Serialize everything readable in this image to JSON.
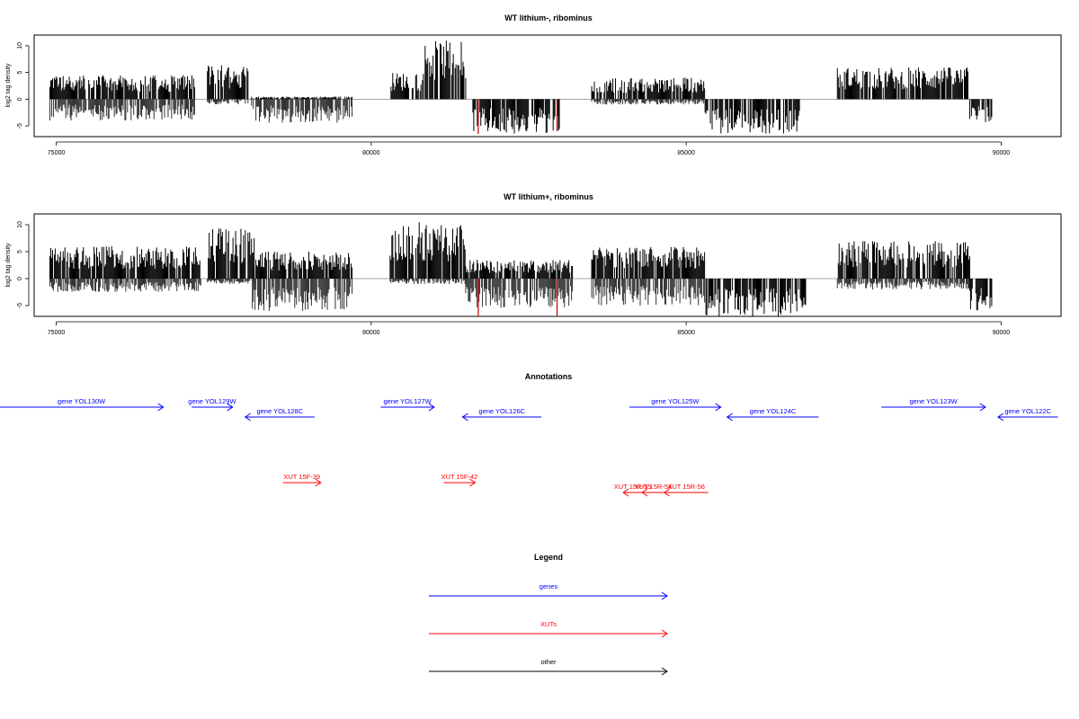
{
  "colors": {
    "gene": "#0000ff",
    "xut": "#ff0000",
    "other": "#000000",
    "signal": "#000000",
    "hi": "#c00000"
  },
  "chart_data": [
    {
      "type": "bar",
      "title": "WT lithium-, ribominus",
      "ylabel": "log2 tag density",
      "xlim": [
        74650,
        90950
      ],
      "ylim": [
        -7,
        12
      ],
      "xticks": [
        "75000",
        "80000",
        "85000",
        "90000"
      ],
      "yticks": [
        "-5",
        "0",
        "5",
        "10"
      ],
      "segments": [
        {
          "start": 74900,
          "end": 77200,
          "max": 4.5,
          "min": -4
        },
        {
          "start": 77400,
          "end": 78050,
          "max": 6.5,
          "min": -1
        },
        {
          "start": 78100,
          "end": 79700,
          "max": 0.5,
          "min": -4.5
        },
        {
          "start": 80300,
          "end": 80800,
          "max": 5,
          "min": 0
        },
        {
          "start": 80800,
          "end": 81500,
          "max": 11,
          "min": 0
        },
        {
          "start": 81600,
          "end": 83000,
          "max": 0,
          "min": -6.5
        },
        {
          "start": 83500,
          "end": 85300,
          "max": 4,
          "min": -1
        },
        {
          "start": 85300,
          "end": 86800,
          "max": 0,
          "min": -6.5
        },
        {
          "start": 87400,
          "end": 89500,
          "max": 6,
          "min": 0
        },
        {
          "start": 89500,
          "end": 89850,
          "max": 0,
          "min": -4.5
        }
      ],
      "highlights": [
        {
          "x": 81700,
          "y": -6.5
        },
        {
          "x": 82950,
          "y": -6
        }
      ]
    },
    {
      "type": "bar",
      "title": "WT lithium+, ribominus",
      "ylabel": "log2 tag density",
      "xlim": [
        74650,
        90950
      ],
      "ylim": [
        -7,
        12
      ],
      "xticks": [
        "75000",
        "80000",
        "85000",
        "90000"
      ],
      "yticks": [
        "-5",
        "0",
        "5",
        "10"
      ],
      "segments": [
        {
          "start": 74900,
          "end": 77300,
          "max": 6,
          "min": -2.5
        },
        {
          "start": 77400,
          "end": 78150,
          "max": 9.5,
          "min": -1
        },
        {
          "start": 78100,
          "end": 79700,
          "max": 5,
          "min": -6
        },
        {
          "start": 80300,
          "end": 81500,
          "max": 10.5,
          "min": -1
        },
        {
          "start": 81500,
          "end": 83200,
          "max": 3.5,
          "min": -5.5
        },
        {
          "start": 83500,
          "end": 85300,
          "max": 6,
          "min": -5
        },
        {
          "start": 85300,
          "end": 86900,
          "max": 0,
          "min": -7
        },
        {
          "start": 87400,
          "end": 89500,
          "max": 7,
          "min": -2
        },
        {
          "start": 89500,
          "end": 89850,
          "max": 0,
          "min": -6
        }
      ],
      "highlights": [
        {
          "x": 81700,
          "y": -7
        },
        {
          "x": 82950,
          "y": -7
        }
      ]
    }
  ],
  "annotations": {
    "title": "Annotations",
    "genes": [
      {
        "label": "gene YOL130W",
        "start": 74100,
        "end": 76700,
        "strand": "+",
        "row": 1
      },
      {
        "label": "gene YOL129W",
        "start": 77150,
        "end": 77800,
        "strand": "+",
        "row": 1
      },
      {
        "label": "gene YOL128C",
        "start": 78000,
        "end": 79100,
        "strand": "-",
        "row": 2
      },
      {
        "label": "gene YOL127W",
        "start": 80150,
        "end": 81000,
        "strand": "+",
        "row": 1
      },
      {
        "label": "gene YOL126C",
        "start": 81450,
        "end": 82700,
        "strand": "-",
        "row": 2
      },
      {
        "label": "gene YOL125W",
        "start": 84100,
        "end": 85550,
        "strand": "+",
        "row": 1
      },
      {
        "label": "gene YOL124C",
        "start": 85650,
        "end": 87100,
        "strand": "-",
        "row": 2
      },
      {
        "label": "gene YOL123W",
        "start": 88100,
        "end": 89750,
        "strand": "+",
        "row": 1
      },
      {
        "label": "gene YOL122C",
        "start": 89950,
        "end": 90900,
        "strand": "-",
        "row": 2
      }
    ],
    "xuts": [
      {
        "label": "XUT 15F-39",
        "start": 78600,
        "end": 79200,
        "strand": "+",
        "row": 3
      },
      {
        "label": "XUT 15F-42",
        "start": 81150,
        "end": 81650,
        "strand": "+",
        "row": 3
      },
      {
        "label": "XUT 15R-55",
        "start": 84000,
        "end": 84300,
        "strand": "-",
        "row": 4
      },
      {
        "label": "XUT 15R-54",
        "start": 84300,
        "end": 84650,
        "strand": "-",
        "row": 4
      },
      {
        "label": "XUT 15R-56",
        "start": 84650,
        "end": 85350,
        "strand": "-",
        "row": 4
      }
    ]
  },
  "legend": {
    "title": "Legend",
    "items": [
      {
        "label": "genes",
        "key": "gene"
      },
      {
        "label": "XUTs",
        "key": "xut"
      },
      {
        "label": "other",
        "key": "other"
      }
    ]
  }
}
